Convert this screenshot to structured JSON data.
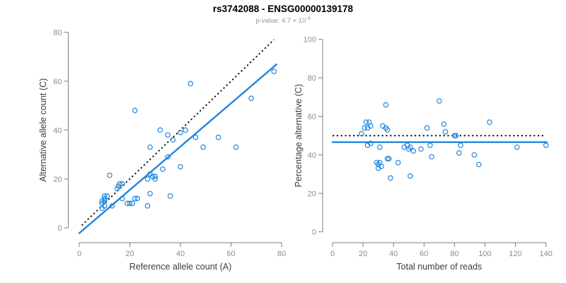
{
  "header": {
    "title": "rs3742088 - ENSG00000139178",
    "subtitle_text": "p-value: 4.7 × 10",
    "subtitle_exponent": "-4"
  },
  "colors": {
    "points": "#1f86e0",
    "fit_line": "#1f86e0",
    "reference_line": "#000000",
    "axis_line": "#7f7f7f",
    "tick_label": "#8c8c8c",
    "axis_title": "#3d3d3d",
    "title": "#000000",
    "subtitle": "#969696",
    "background": "#ffffff"
  },
  "chart_data": [
    {
      "id": "allele-counts",
      "type": "scatter",
      "xlabel": "Reference allele count (A)",
      "ylabel": "Alternative allele count (C)",
      "xlim": [
        0,
        80
      ],
      "ylim": [
        0,
        80
      ],
      "xticks": [
        0,
        20,
        40,
        60,
        80
      ],
      "yticks": [
        0,
        20,
        40,
        60,
        80
      ],
      "grid": false,
      "legend": "none",
      "reference_line": {
        "style": "dotted",
        "x1": 1,
        "y1": 1,
        "x2": 77,
        "y2": 77
      },
      "fit_line": {
        "style": "solid",
        "x1": 0,
        "y1": -2.2,
        "x2": 78,
        "y2": 66.9
      },
      "points": [
        [
          77,
          64
        ],
        [
          68,
          53
        ],
        [
          44,
          59
        ],
        [
          22,
          48
        ],
        [
          42,
          40
        ],
        [
          40,
          39
        ],
        [
          35,
          38
        ],
        [
          37,
          36
        ],
        [
          32,
          40
        ],
        [
          46,
          37
        ],
        [
          55,
          37
        ],
        [
          49,
          33
        ],
        [
          62,
          33
        ],
        [
          28,
          33
        ],
        [
          35,
          29
        ],
        [
          40,
          25
        ],
        [
          33,
          24
        ],
        [
          28,
          22
        ],
        [
          29,
          21
        ],
        [
          30,
          21
        ],
        [
          30,
          20
        ],
        [
          27,
          20
        ],
        [
          12,
          21.5
        ],
        [
          16,
          18
        ],
        [
          17,
          18
        ],
        [
          15.5,
          17
        ],
        [
          15,
          16
        ],
        [
          28,
          14
        ],
        [
          36,
          13
        ],
        [
          22,
          12
        ],
        [
          23,
          12
        ],
        [
          17,
          12
        ],
        [
          19,
          10
        ],
        [
          20,
          10
        ],
        [
          21,
          10
        ],
        [
          27,
          9
        ],
        [
          13,
          9
        ],
        [
          10,
          13
        ],
        [
          11,
          13
        ],
        [
          10,
          12
        ],
        [
          9,
          11
        ],
        [
          10,
          11
        ],
        [
          9,
          10
        ],
        [
          10,
          9
        ],
        [
          9,
          8
        ]
      ]
    },
    {
      "id": "percentage-alternative",
      "type": "scatter",
      "xlabel": "Total number of reads",
      "ylabel": "Percentage alternative (C)",
      "xlim": [
        0,
        140
      ],
      "ylim": [
        0,
        100
      ],
      "xticks": [
        0,
        20,
        40,
        60,
        80,
        100,
        120,
        140
      ],
      "yticks": [
        0,
        20,
        40,
        60,
        80,
        100
      ],
      "grid": false,
      "legend": "none",
      "reference_line": {
        "style": "dotted",
        "x1": 0,
        "y1": 50,
        "x2": 138.5,
        "y2": 50
      },
      "fit_line": {
        "style": "solid",
        "x1": 0,
        "y1": 46.6,
        "x2": 140.5,
        "y2": 46.6
      },
      "points": [
        [
          70,
          68
        ],
        [
          35,
          66
        ],
        [
          103,
          57
        ],
        [
          22,
          57
        ],
        [
          24,
          57
        ],
        [
          25,
          55
        ],
        [
          21,
          54
        ],
        [
          23,
          54
        ],
        [
          19,
          51
        ],
        [
          33,
          55
        ],
        [
          35,
          54
        ],
        [
          36,
          53
        ],
        [
          62,
          54
        ],
        [
          73,
          56
        ],
        [
          74,
          52
        ],
        [
          80,
          50
        ],
        [
          81,
          50
        ],
        [
          23,
          45
        ],
        [
          25,
          46
        ],
        [
          31,
          44
        ],
        [
          47,
          44
        ],
        [
          49,
          45
        ],
        [
          50,
          43
        ],
        [
          51,
          44
        ],
        [
          53,
          42
        ],
        [
          58,
          43
        ],
        [
          64,
          45
        ],
        [
          84,
          45
        ],
        [
          121,
          44
        ],
        [
          140,
          45
        ],
        [
          65,
          39
        ],
        [
          36,
          38
        ],
        [
          37,
          38
        ],
        [
          43,
          36
        ],
        [
          29,
          36
        ],
        [
          31,
          36
        ],
        [
          30,
          35
        ],
        [
          32,
          34
        ],
        [
          30,
          33
        ],
        [
          38,
          28
        ],
        [
          51,
          29
        ],
        [
          83,
          41
        ],
        [
          93,
          40
        ],
        [
          96,
          35
        ]
      ]
    }
  ]
}
